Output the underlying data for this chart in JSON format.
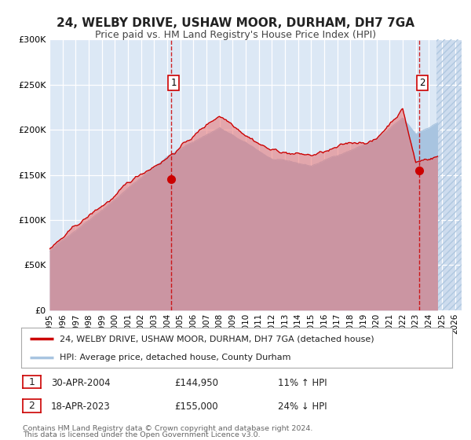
{
  "title": "24, WELBY DRIVE, USHAW MOOR, DURHAM, DH7 7GA",
  "subtitle": "Price paid vs. HM Land Registry's House Price Index (HPI)",
  "ylim": [
    0,
    300000
  ],
  "xlim_start": 1995.0,
  "xlim_end": 2026.5,
  "yticks": [
    0,
    50000,
    100000,
    150000,
    200000,
    250000,
    300000
  ],
  "ytick_labels": [
    "£0",
    "£50K",
    "£100K",
    "£150K",
    "£200K",
    "£250K",
    "£300K"
  ],
  "xticks": [
    1995,
    1996,
    1997,
    1998,
    1999,
    2000,
    2001,
    2002,
    2003,
    2004,
    2005,
    2006,
    2007,
    2008,
    2009,
    2010,
    2011,
    2012,
    2013,
    2014,
    2015,
    2016,
    2017,
    2018,
    2019,
    2020,
    2021,
    2022,
    2023,
    2024,
    2025,
    2026
  ],
  "hpi_color": "#a8c4e0",
  "price_color": "#cc0000",
  "marker_color": "#cc0000",
  "vline_color": "#cc0000",
  "plot_bg": "#dce8f5",
  "hatch_bg": "#c8d8ec",
  "legend_label_price": "24, WELBY DRIVE, USHAW MOOR, DURHAM, DH7 7GA (detached house)",
  "legend_label_hpi": "HPI: Average price, detached house, County Durham",
  "transaction1_date": "30-APR-2004",
  "transaction1_price": "£144,950",
  "transaction1_hpi": "11% ↑ HPI",
  "transaction1_year": 2004.29,
  "transaction1_value": 144950,
  "transaction2_date": "18-APR-2023",
  "transaction2_price": "£155,000",
  "transaction2_hpi": "24% ↓ HPI",
  "transaction2_year": 2023.29,
  "transaction2_value": 155000,
  "footer1": "Contains HM Land Registry data © Crown copyright and database right 2024.",
  "footer2": "This data is licensed under the Open Government Licence v3.0."
}
